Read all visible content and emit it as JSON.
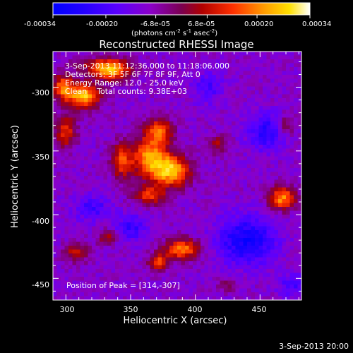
{
  "chart_data": {
    "type": "heatmap",
    "title": "Reconstructed RHESSI Image",
    "xlabel": "Heliocentric X (arcsec)",
    "ylabel": "Heliocentric Y (arcsec)",
    "xlim": [
      290,
      482
    ],
    "ylim": [
      -467,
      -272
    ],
    "xticks": [
      300,
      350,
      400,
      450
    ],
    "yticks": [
      -300,
      -350,
      -400,
      -450
    ],
    "colorbar": {
      "range": [
        -0.00034,
        0.00034
      ],
      "tick_labels": [
        "-0.00034",
        "-0.00020",
        "-6.8e-05",
        "6.8e-05",
        "0.00020",
        "0.00034"
      ],
      "unit_prefix": "(photons cm",
      "unit_sup1": "-2",
      "unit_mid": " s",
      "unit_sup2": "-1",
      "unit_mid2": " asec",
      "unit_sup3": "-2",
      "unit_suffix": ")"
    },
    "annotations": [
      "3-Sep-2013 11:12:36.000 to 11:18:06.000",
      "Detectors: 3F 5F 6F 7F 8F 9F, Att 0",
      "Energy Range: 12.0 - 25.0 keV",
      "Clean    Total counts: 9.38E+03"
    ],
    "peak_label": "Position of Peak = [314,-307]",
    "sources": [
      {
        "x": 314,
        "y": -307,
        "sx": 12,
        "sy": 10,
        "amp": 1.0
      },
      {
        "x": 298,
        "y": -300,
        "sx": 8,
        "sy": 10,
        "amp": 0.75
      },
      {
        "x": 335,
        "y": -288,
        "sx": 12,
        "sy": 7,
        "amp": 0.75
      },
      {
        "x": 330,
        "y": -283,
        "sx": 20,
        "sy": 6,
        "amp": 0.55
      },
      {
        "x": 300,
        "y": -335,
        "sx": 8,
        "sy": 12,
        "amp": 0.6
      },
      {
        "x": 365,
        "y": -355,
        "sx": 14,
        "sy": 16,
        "amp": 0.85
      },
      {
        "x": 382,
        "y": -366,
        "sx": 14,
        "sy": 12,
        "amp": 0.95
      },
      {
        "x": 372,
        "y": -334,
        "sx": 10,
        "sy": 10,
        "amp": 0.65
      },
      {
        "x": 365,
        "y": -385,
        "sx": 12,
        "sy": 7,
        "amp": 0.6
      },
      {
        "x": 343,
        "y": -358,
        "sx": 8,
        "sy": 14,
        "amp": 0.6
      },
      {
        "x": 418,
        "y": -345,
        "sx": 7,
        "sy": 7,
        "amp": 0.4
      },
      {
        "x": 467,
        "y": -387,
        "sx": 10,
        "sy": 9,
        "amp": 0.85
      },
      {
        "x": 390,
        "y": -427,
        "sx": 13,
        "sy": 8,
        "amp": 0.8
      },
      {
        "x": 372,
        "y": -437,
        "sx": 8,
        "sy": 7,
        "amp": 0.6
      },
      {
        "x": 308,
        "y": -430,
        "sx": 9,
        "sy": 7,
        "amp": 0.5
      },
      {
        "x": 332,
        "y": -418,
        "sx": 7,
        "sy": 6,
        "amp": 0.4
      },
      {
        "x": 470,
        "y": -330,
        "sx": 6,
        "sy": 8,
        "amp": 0.35
      },
      {
        "x": 425,
        "y": -455,
        "sx": 7,
        "sy": 5,
        "amp": 0.3
      }
    ],
    "negative_regions": [
      {
        "x": 440,
        "y": -420,
        "sx": 22,
        "sy": 18,
        "amp": 0.6
      },
      {
        "x": 455,
        "y": -335,
        "sx": 14,
        "sy": 14,
        "amp": 0.45
      },
      {
        "x": 350,
        "y": -410,
        "sx": 12,
        "sy": 10,
        "amp": 0.4
      },
      {
        "x": 320,
        "y": -395,
        "sx": 14,
        "sy": 10,
        "amp": 0.35
      },
      {
        "x": 410,
        "y": -300,
        "sx": 12,
        "sy": 12,
        "amp": 0.3
      },
      {
        "x": 475,
        "y": -455,
        "sx": 10,
        "sy": 8,
        "amp": 0.35
      }
    ]
  },
  "footer_date": "3-Sep-2013 20:00"
}
